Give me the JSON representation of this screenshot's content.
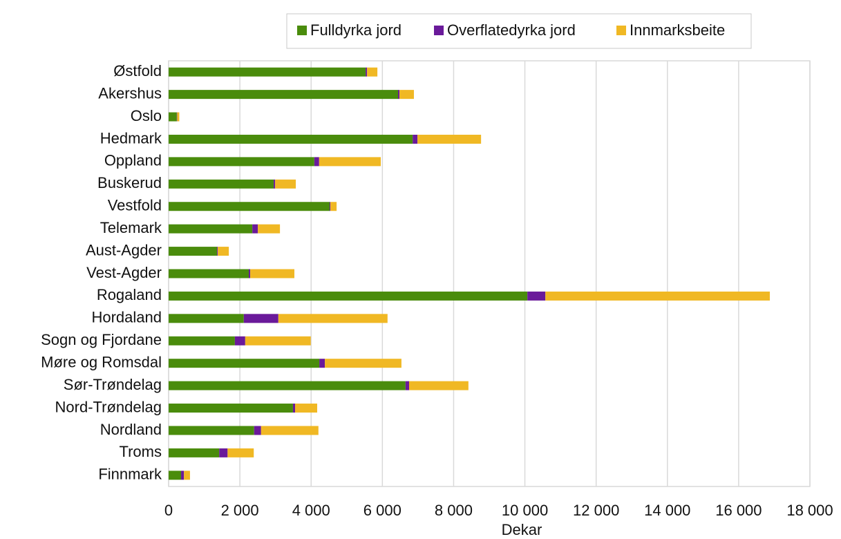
{
  "chart_data": {
    "type": "stacked_barh",
    "categories": [
      "Østfold",
      "Akershus",
      "Oslo",
      "Hedmark",
      "Oppland",
      "Buskerud",
      "Vestfold",
      "Telemark",
      "Aust-Agder",
      "Vest-Agder",
      "Rogaland",
      "Hordaland",
      "Sogn og Fjordane",
      "Møre og Romsdal",
      "Sør-Trøndelag",
      "Nord-Trøndelag",
      "Nordland",
      "Troms",
      "Finnmark"
    ],
    "series": [
      {
        "name": "Fulldyrka jord",
        "color": "#4a8c0c",
        "values": [
          5530,
          6440,
          230,
          6850,
          4090,
          2950,
          4520,
          2350,
          1360,
          2250,
          10070,
          2110,
          1860,
          4230,
          6650,
          3490,
          2400,
          1420,
          350
        ]
      },
      {
        "name": "Overflatedyrka jord",
        "color": "#6a1a9a",
        "values": [
          40,
          40,
          10,
          135,
          135,
          40,
          20,
          155,
          20,
          40,
          505,
          970,
          290,
          155,
          100,
          60,
          195,
          235,
          80
        ]
      },
      {
        "name": "Innmarksbeite",
        "color": "#f0b824",
        "values": [
          290,
          405,
          60,
          1785,
          1730,
          580,
          175,
          620,
          310,
          1240,
          6300,
          3065,
          1840,
          2150,
          1665,
          620,
          1610,
          735,
          170
        ]
      }
    ],
    "xlabel": "Dekar",
    "xlim": [
      0,
      18000
    ],
    "xticks": [
      0,
      {
        "value": 2000,
        "label": "2 000"
      },
      {
        "value": 4000,
        "label": "4 000"
      },
      {
        "value": 6000,
        "label": "6 000"
      },
      {
        "value": 8000,
        "label": "8 000"
      },
      {
        "value": 10000,
        "label": "10 000"
      },
      {
        "value": 12000,
        "label": "12 000"
      },
      {
        "value": 14000,
        "label": "14 000"
      },
      {
        "value": 16000,
        "label": "16 000"
      },
      {
        "value": 18000,
        "label": "18 000"
      }
    ],
    "grid": true
  }
}
